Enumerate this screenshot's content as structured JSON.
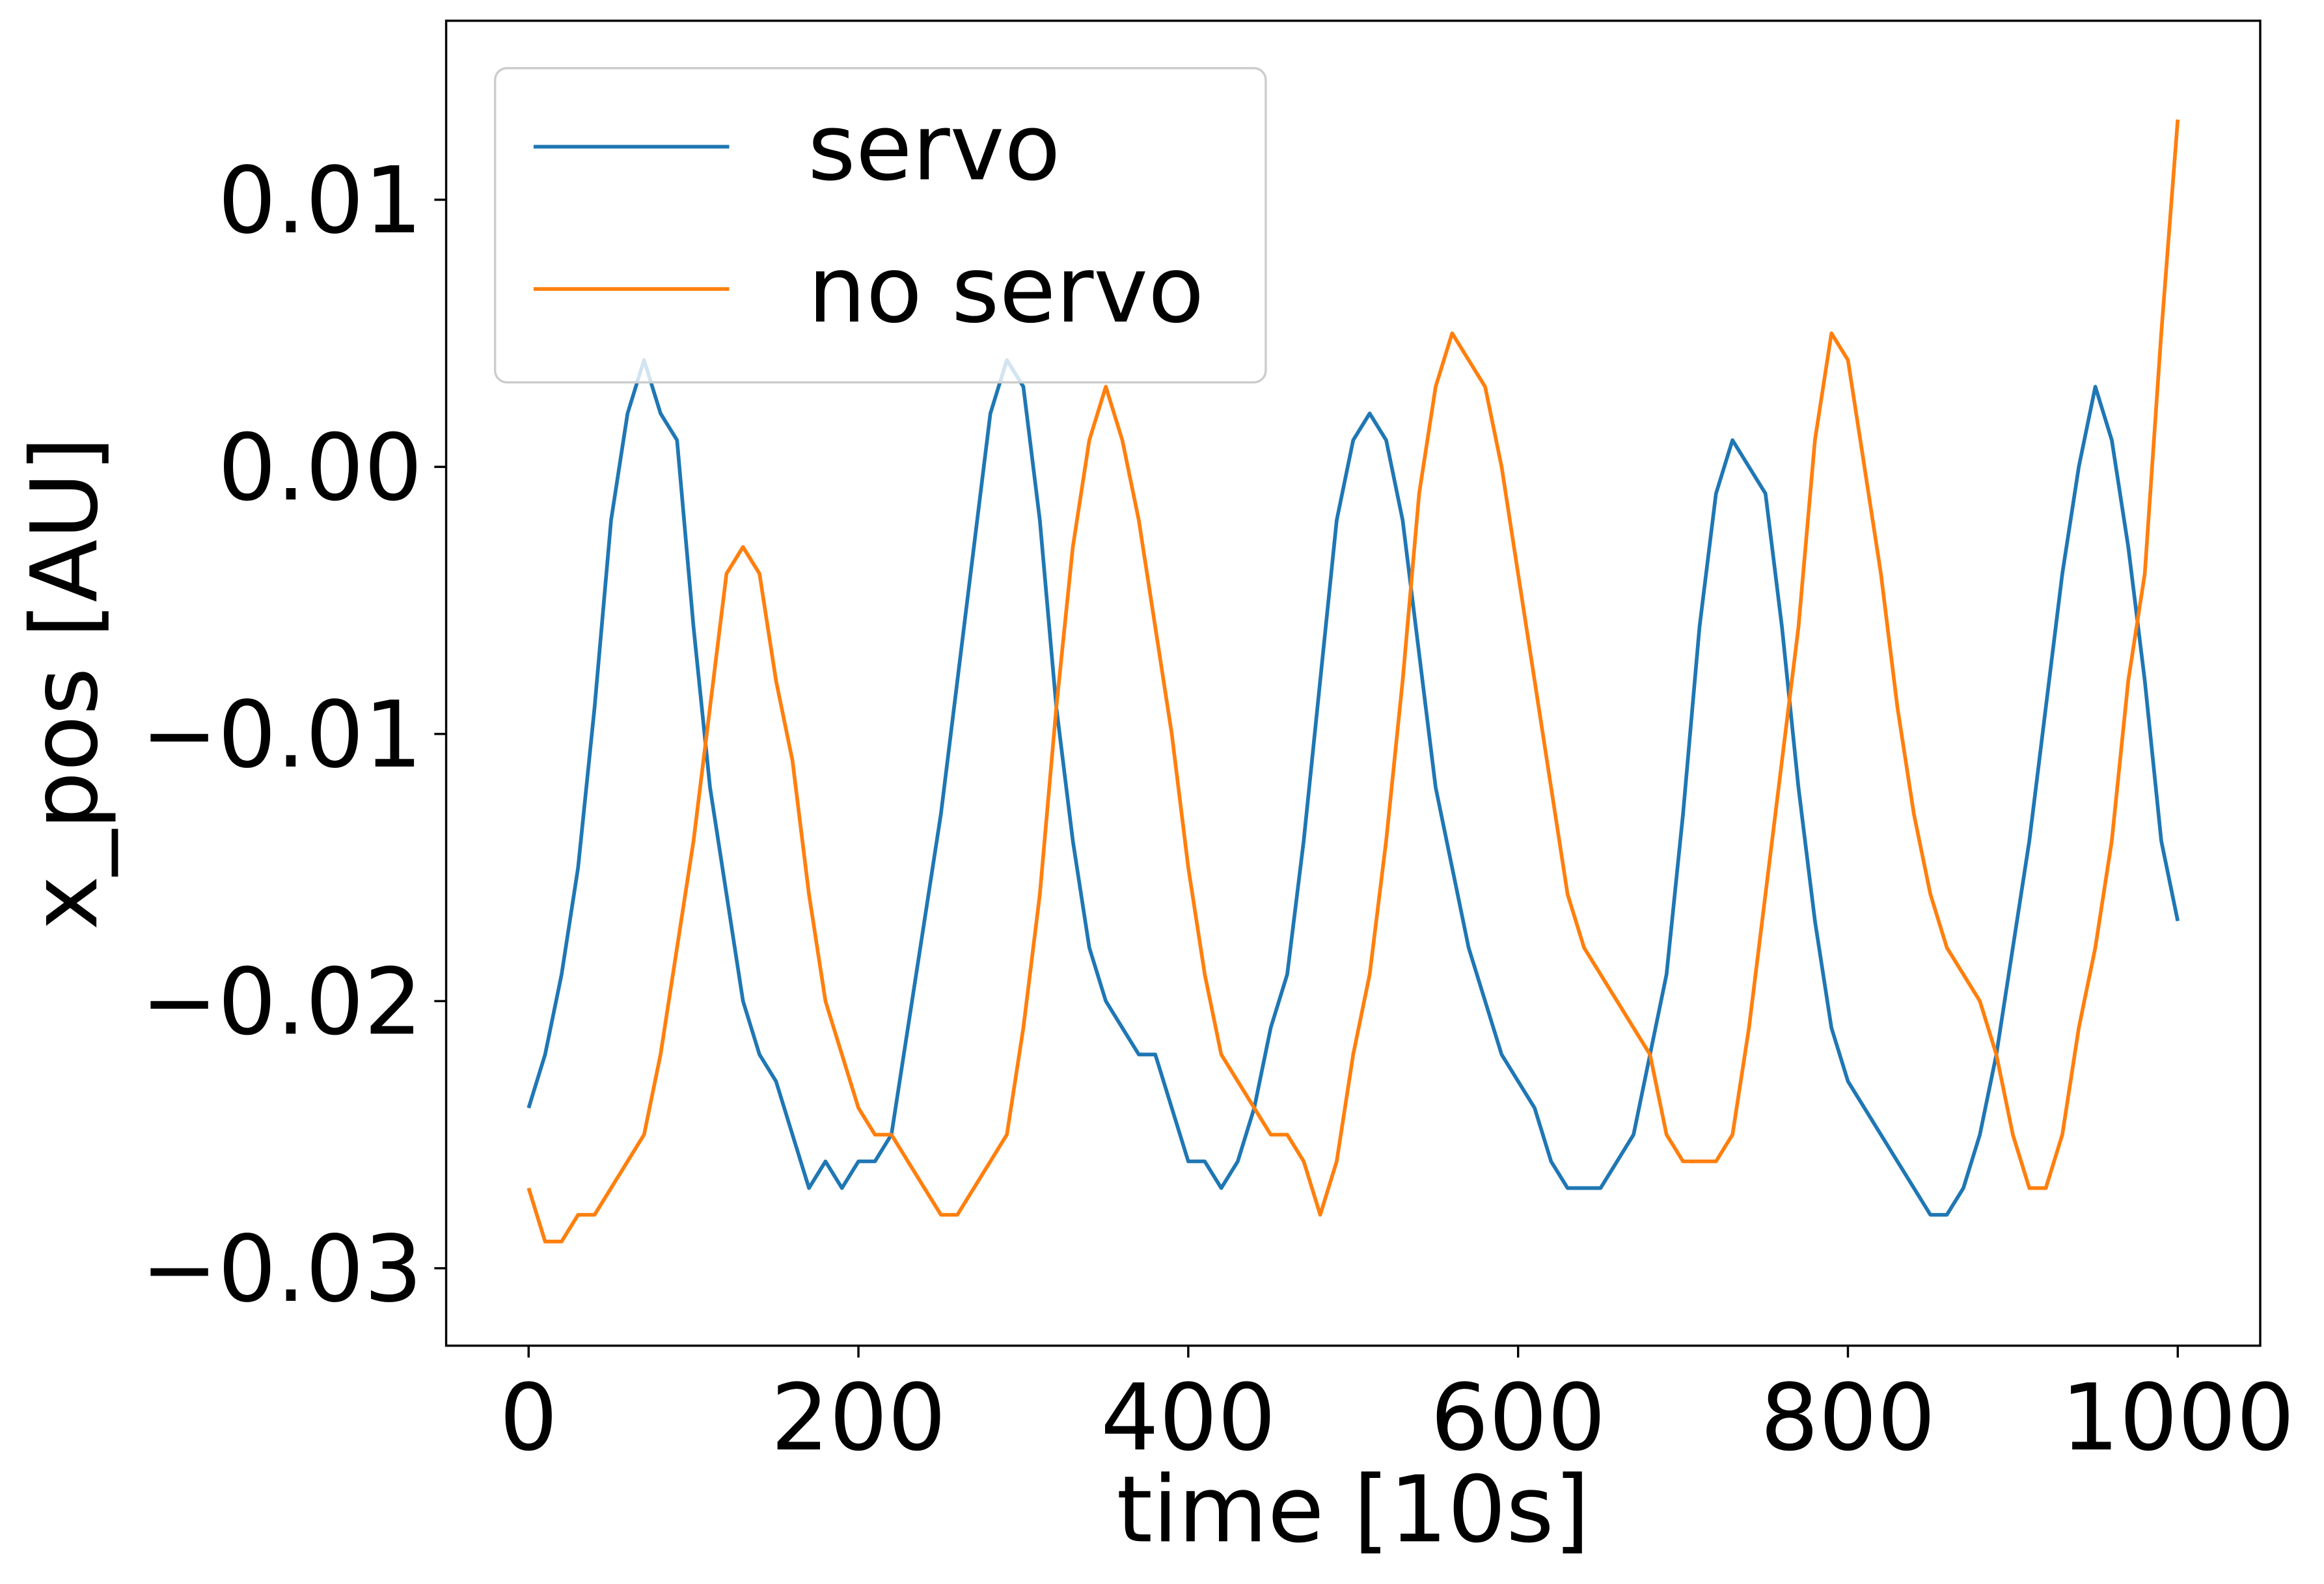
{
  "chart_data": {
    "type": "line",
    "xlabel": "time [10s]",
    "ylabel": "x_pos [AU]",
    "legend": "upper left",
    "x": [
      0,
      10,
      20,
      30,
      40,
      50,
      60,
      70,
      80,
      90,
      100,
      110,
      120,
      130,
      140,
      150,
      160,
      170,
      180,
      190,
      200,
      210,
      220,
      230,
      240,
      250,
      260,
      270,
      280,
      290,
      300,
      310,
      320,
      330,
      340,
      350,
      360,
      370,
      380,
      390,
      400,
      410,
      420,
      430,
      440,
      450,
      460,
      470,
      480,
      490,
      500,
      510,
      520,
      530,
      540,
      550,
      560,
      570,
      580,
      590,
      600,
      610,
      620,
      630,
      640,
      650,
      660,
      670,
      680,
      690,
      700,
      710,
      720,
      730,
      740,
      750,
      760,
      770,
      780,
      790,
      800,
      810,
      820,
      830,
      840,
      850,
      860,
      870,
      880,
      890,
      900,
      910,
      920,
      930,
      940,
      950,
      960,
      970,
      980,
      990,
      1000
    ],
    "series": [
      {
        "name": "servo",
        "color": "#1f77b4",
        "values": [
          -0.024,
          -0.022,
          -0.019,
          -0.015,
          -0.009,
          -0.002,
          0.002,
          0.004,
          0.002,
          0.001,
          -0.006,
          -0.012,
          -0.016,
          -0.02,
          -0.022,
          -0.023,
          -0.025,
          -0.027,
          -0.026,
          -0.027,
          -0.026,
          -0.026,
          -0.025,
          -0.021,
          -0.017,
          -0.013,
          -0.008,
          -0.003,
          0.002,
          0.004,
          0.003,
          -0.002,
          -0.009,
          -0.014,
          -0.018,
          -0.02,
          -0.021,
          -0.022,
          -0.022,
          -0.024,
          -0.026,
          -0.026,
          -0.027,
          -0.026,
          -0.024,
          -0.021,
          -0.019,
          -0.014,
          -0.008,
          -0.002,
          0.001,
          0.002,
          0.001,
          -0.002,
          -0.007,
          -0.012,
          -0.015,
          -0.018,
          -0.02,
          -0.022,
          -0.023,
          -0.024,
          -0.026,
          -0.027,
          -0.027,
          -0.027,
          -0.026,
          -0.025,
          -0.022,
          -0.019,
          -0.013,
          -0.006,
          -0.001,
          0.001,
          0.0,
          -0.001,
          -0.006,
          -0.012,
          -0.017,
          -0.021,
          -0.023,
          -0.024,
          -0.025,
          -0.026,
          -0.027,
          -0.028,
          -0.028,
          -0.027,
          -0.025,
          -0.022,
          -0.018,
          -0.014,
          -0.009,
          -0.004,
          0.0,
          0.003,
          0.001,
          -0.003,
          -0.008,
          -0.014,
          -0.017
        ]
      },
      {
        "name": "no servo",
        "color": "#ff7f0e",
        "values": [
          -0.027,
          -0.029,
          -0.029,
          -0.028,
          -0.028,
          -0.027,
          -0.026,
          -0.025,
          -0.022,
          -0.018,
          -0.014,
          -0.009,
          -0.004,
          -0.003,
          -0.004,
          -0.008,
          -0.011,
          -0.016,
          -0.02,
          -0.022,
          -0.024,
          -0.025,
          -0.025,
          -0.026,
          -0.027,
          -0.028,
          -0.028,
          -0.027,
          -0.026,
          -0.025,
          -0.021,
          -0.016,
          -0.009,
          -0.003,
          0.001,
          0.003,
          0.001,
          -0.002,
          -0.006,
          -0.01,
          -0.015,
          -0.019,
          -0.022,
          -0.023,
          -0.024,
          -0.025,
          -0.025,
          -0.026,
          -0.028,
          -0.026,
          -0.022,
          -0.019,
          -0.014,
          -0.008,
          -0.001,
          0.003,
          0.005,
          0.004,
          0.003,
          0.0,
          -0.004,
          -0.008,
          -0.012,
          -0.016,
          -0.018,
          -0.019,
          -0.02,
          -0.021,
          -0.022,
          -0.025,
          -0.026,
          -0.026,
          -0.026,
          -0.025,
          -0.021,
          -0.016,
          -0.011,
          -0.006,
          0.001,
          0.005,
          0.004,
          0.0,
          -0.004,
          -0.009,
          -0.013,
          -0.016,
          -0.018,
          -0.019,
          -0.02,
          -0.022,
          -0.025,
          -0.027,
          -0.027,
          -0.025,
          -0.021,
          -0.018,
          -0.014,
          -0.008,
          -0.004,
          0.005,
          0.013
        ]
      }
    ],
    "xlim": [
      -50,
      1050
    ],
    "xticks": [
      0,
      200,
      400,
      600,
      800,
      1000
    ],
    "ylim": [
      -0.0329,
      0.0167
    ],
    "yticks": [
      {
        "value": -0.03,
        "label": "−0.03"
      },
      {
        "value": -0.02,
        "label": "−0.02"
      },
      {
        "value": -0.01,
        "label": "−0.01"
      },
      {
        "value": 0,
        "label": "0.00"
      },
      {
        "value": 0.01,
        "label": "0.01"
      }
    ],
    "grid": false
  }
}
